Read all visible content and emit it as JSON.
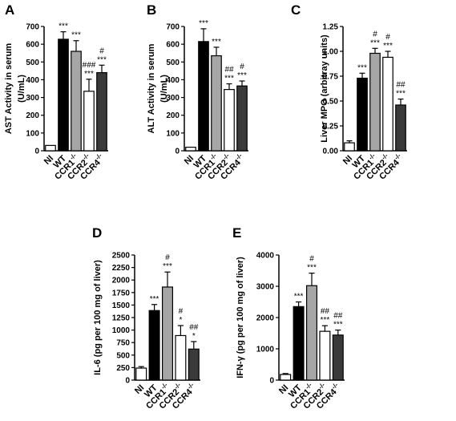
{
  "chart_data": [
    {
      "panel": "A",
      "type": "bar",
      "ylabel_lines": [
        "AST Activity in serum",
        "(U/mL)"
      ],
      "ylim": [
        0,
        700
      ],
      "yticks": [
        0,
        100,
        200,
        300,
        400,
        500,
        600,
        700
      ],
      "categories": [
        {
          "base": "NI",
          "sup": ""
        },
        {
          "base": "WT",
          "sup": ""
        },
        {
          "base": "CCR1",
          "sup": "-/-"
        },
        {
          "base": "CCR2",
          "sup": "-/-"
        },
        {
          "base": "CCR4",
          "sup": "-/-"
        }
      ],
      "values": [
        30,
        628,
        560,
        335,
        440
      ],
      "errors": [
        0,
        42,
        60,
        68,
        42
      ],
      "colors": [
        "#ffffff",
        "#000000",
        "#a6a6a6",
        "#ffffff",
        "#3a3a3a"
      ],
      "annotations": [
        [],
        [
          "***"
        ],
        [
          "***"
        ],
        [
          "###",
          "***"
        ],
        [
          "#",
          "***"
        ]
      ]
    },
    {
      "panel": "B",
      "type": "bar",
      "ylabel_lines": [
        "ALT Activity in serum",
        "(U/mL)"
      ],
      "ylim": [
        0,
        700
      ],
      "yticks": [
        0,
        100,
        200,
        300,
        400,
        500,
        600,
        700
      ],
      "categories": [
        {
          "base": "NI",
          "sup": ""
        },
        {
          "base": "WT",
          "sup": ""
        },
        {
          "base": "CCR1",
          "sup": "-/-"
        },
        {
          "base": "CCR2",
          "sup": "-/-"
        },
        {
          "base": "CCR4",
          "sup": "-/-"
        }
      ],
      "values": [
        20,
        615,
        535,
        345,
        365
      ],
      "errors": [
        0,
        72,
        48,
        32,
        28
      ],
      "colors": [
        "#ffffff",
        "#000000",
        "#a6a6a6",
        "#ffffff",
        "#3a3a3a"
      ],
      "annotations": [
        [],
        [
          "***"
        ],
        [
          "***"
        ],
        [
          "##",
          "***"
        ],
        [
          "#",
          "***"
        ]
      ]
    },
    {
      "panel": "C",
      "type": "bar",
      "ylabel_lines": [
        "Liver MPO (arbitray units)"
      ],
      "ylim": [
        0,
        1.25
      ],
      "yticks": [
        0,
        0.25,
        0.5,
        0.75,
        1.0,
        1.25
      ],
      "ytick_labels": [
        "0.00",
        "0.25",
        "0.50",
        "0.75",
        "1.00",
        "1.25"
      ],
      "categories": [
        {
          "base": "NI",
          "sup": ""
        },
        {
          "base": "WT",
          "sup": ""
        },
        {
          "base": "CCR1",
          "sup": "-/-"
        },
        {
          "base": "CCR2",
          "sup": "-/-"
        },
        {
          "base": "CCR4",
          "sup": "-/-"
        }
      ],
      "values": [
        0.08,
        0.73,
        0.98,
        0.94,
        0.46
      ],
      "errors": [
        0.02,
        0.05,
        0.05,
        0.06,
        0.06
      ],
      "colors": [
        "#ffffff",
        "#000000",
        "#a6a6a6",
        "#ffffff",
        "#3a3a3a"
      ],
      "annotations": [
        [],
        [
          "***"
        ],
        [
          "#",
          "***"
        ],
        [
          "#",
          "***"
        ],
        [
          "##",
          "***"
        ]
      ]
    },
    {
      "panel": "D",
      "type": "bar",
      "ylabel_lines": [
        "IL-6 (pg per 100 mg of liver)"
      ],
      "ylim": [
        0,
        2500
      ],
      "yticks": [
        0,
        250,
        500,
        750,
        1000,
        1250,
        1500,
        1750,
        2000,
        2250,
        2500
      ],
      "categories": [
        {
          "base": "NI",
          "sup": ""
        },
        {
          "base": "WT",
          "sup": ""
        },
        {
          "base": "CCR1",
          "sup": "-/-"
        },
        {
          "base": "CCR2",
          "sup": "-/-"
        },
        {
          "base": "CCR4",
          "sup": "-/-"
        }
      ],
      "values": [
        240,
        1390,
        1860,
        890,
        620
      ],
      "errors": [
        30,
        120,
        300,
        200,
        150
      ],
      "colors": [
        "#ffffff",
        "#000000",
        "#a6a6a6",
        "#ffffff",
        "#3a3a3a"
      ],
      "annotations": [
        [],
        [
          "***"
        ],
        [
          "#",
          "***"
        ],
        [
          "#",
          "*"
        ],
        [
          "##",
          "*"
        ]
      ]
    },
    {
      "panel": "E",
      "type": "bar",
      "ylabel_lines": [
        "IFN-γ (pg per 100 mg of liver)"
      ],
      "ylim": [
        0,
        4000
      ],
      "yticks": [
        0,
        1000,
        2000,
        3000,
        4000
      ],
      "categories": [
        {
          "base": "NI",
          "sup": ""
        },
        {
          "base": "WT",
          "sup": ""
        },
        {
          "base": "CCR1",
          "sup": "-/-"
        },
        {
          "base": "CCR2",
          "sup": "-/-"
        },
        {
          "base": "CCR4",
          "sup": "-/-"
        }
      ],
      "values": [
        180,
        2350,
        3020,
        1560,
        1440
      ],
      "errors": [
        30,
        150,
        400,
        180,
        160
      ],
      "colors": [
        "#ffffff",
        "#000000",
        "#a6a6a6",
        "#ffffff",
        "#3a3a3a"
      ],
      "annotations": [
        [],
        [
          "***"
        ],
        [
          "#",
          "***"
        ],
        [
          "##",
          "***"
        ],
        [
          "##",
          "***"
        ]
      ]
    }
  ]
}
